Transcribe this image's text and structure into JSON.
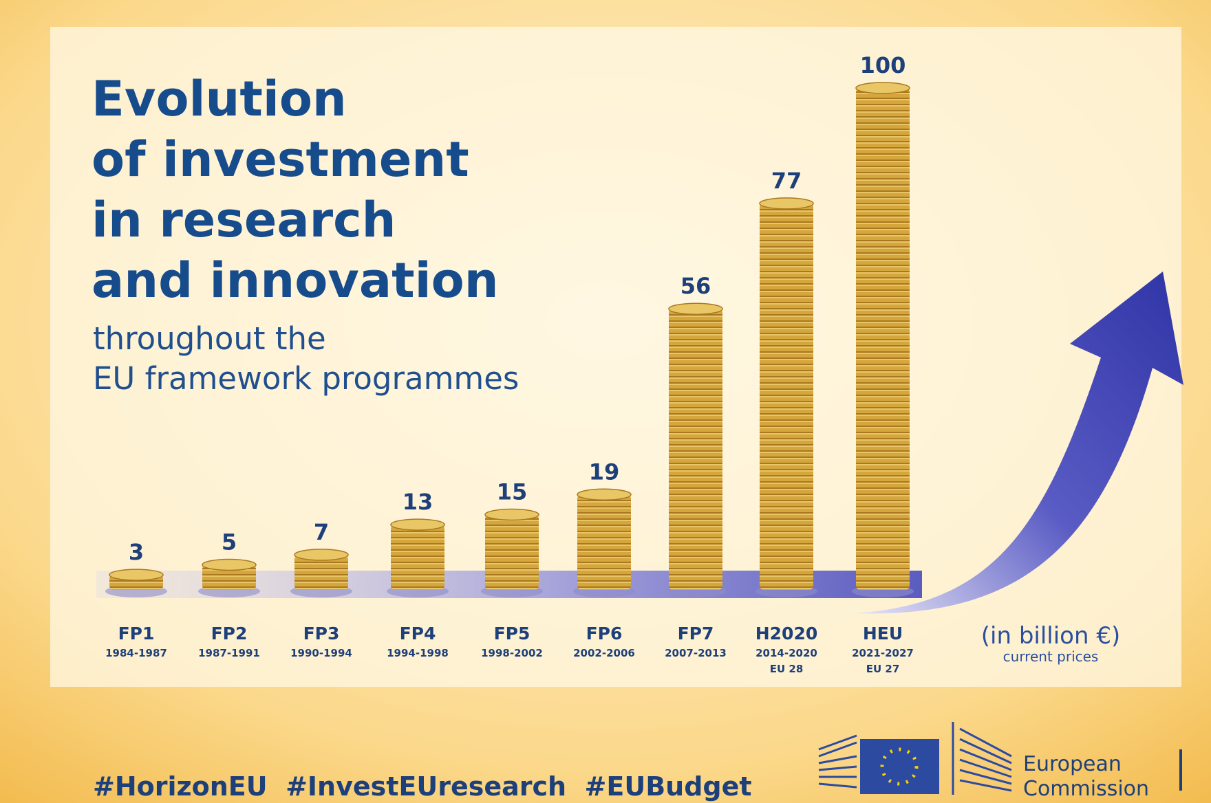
{
  "chart_data": {
    "type": "bar",
    "title": [
      "Evolution",
      "of investment",
      "in research",
      "and innovation"
    ],
    "subtitle": [
      "throughout the",
      "EU framework programmes"
    ],
    "categories": [
      "FP1",
      "FP2",
      "FP3",
      "FP4",
      "FP5",
      "FP6",
      "FP7",
      "H2020",
      "HEU"
    ],
    "periods": [
      "1984-1987",
      "1987-1991",
      "1990-1994",
      "1994-1998",
      "1998-2002",
      "2002-2006",
      "2007-2013",
      "2014-2020",
      "2021-2027"
    ],
    "members": [
      null,
      null,
      null,
      null,
      null,
      null,
      null,
      "EU 28",
      "EU 27"
    ],
    "values": [
      3,
      5,
      7,
      13,
      15,
      19,
      56,
      77,
      100
    ],
    "color": "#d4a63c",
    "unit_label": "(in billion €)",
    "unit_note": "current prices",
    "hashtags": "#HorizonEU  #InvestEUresearch  #EUBudget",
    "logo_text": [
      "European",
      "Commission"
    ]
  }
}
